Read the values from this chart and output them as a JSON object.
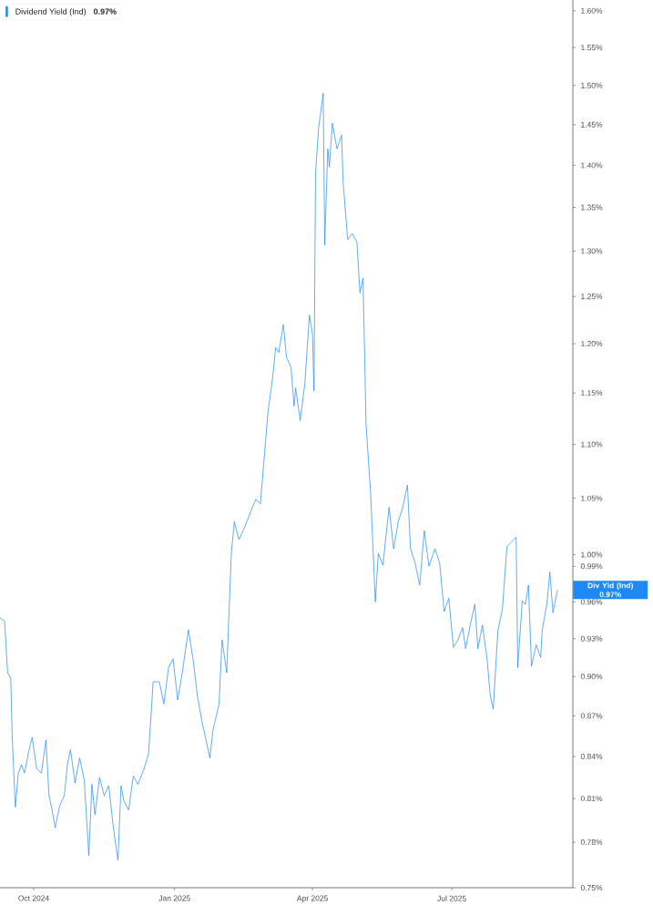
{
  "chart_data": {
    "type": "line",
    "x": [
      "2024-09-09",
      "2024-09-12",
      "2024-09-14",
      "2024-09-16",
      "2024-09-17",
      "2024-09-19",
      "2024-09-21",
      "2024-09-23",
      "2024-09-25",
      "2024-09-28",
      "2024-09-30",
      "2024-10-03",
      "2024-10-06",
      "2024-10-09",
      "2024-10-11",
      "2024-10-13",
      "2024-10-15",
      "2024-10-18",
      "2024-10-21",
      "2024-10-23",
      "2024-10-25",
      "2024-10-28",
      "2024-10-31",
      "2024-11-03",
      "2024-11-06",
      "2024-11-08",
      "2024-11-10",
      "2024-11-13",
      "2024-11-16",
      "2024-11-19",
      "2024-11-22",
      "2024-11-25",
      "2024-11-27",
      "2024-11-29",
      "2024-12-02",
      "2024-12-05",
      "2024-12-08",
      "2024-12-12",
      "2024-12-15",
      "2024-12-18",
      "2024-12-22",
      "2024-12-25",
      "2024-12-28",
      "2024-12-31",
      "2025-01-03",
      "2025-01-06",
      "2025-01-10",
      "2025-01-13",
      "2025-01-16",
      "2025-01-19",
      "2025-01-24",
      "2025-01-26",
      "2025-01-30",
      "2025-02-01",
      "2025-02-04",
      "2025-02-07",
      "2025-02-09",
      "2025-02-12",
      "2025-02-16",
      "2025-02-20",
      "2025-02-23",
      "2025-02-26",
      "2025-02-28",
      "2025-03-03",
      "2025-03-06",
      "2025-03-08",
      "2025-03-10",
      "2025-03-13",
      "2025-03-15",
      "2025-03-18",
      "2025-03-20",
      "2025-03-21",
      "2025-03-24",
      "2025-03-27",
      "2025-03-30",
      "2025-04-01",
      "2025-04-02",
      "2025-04-03",
      "2025-04-05",
      "2025-04-08",
      "2025-04-09",
      "2025-04-11",
      "2025-04-12",
      "2025-04-14",
      "2025-04-17",
      "2025-04-20",
      "2025-04-21",
      "2025-04-24",
      "2025-04-27",
      "2025-04-30",
      "2025-05-02",
      "2025-05-04",
      "2025-05-06",
      "2025-05-09",
      "2025-05-12",
      "2025-05-14",
      "2025-05-17",
      "2025-05-21",
      "2025-05-24",
      "2025-05-27",
      "2025-05-30",
      "2025-06-02",
      "2025-06-04",
      "2025-06-07",
      "2025-06-10",
      "2025-06-13",
      "2025-06-16",
      "2025-06-20",
      "2025-06-23",
      "2025-06-26",
      "2025-06-29",
      "2025-07-02",
      "2025-07-05",
      "2025-07-08",
      "2025-07-10",
      "2025-07-13",
      "2025-07-16",
      "2025-07-18",
      "2025-07-21",
      "2025-07-24",
      "2025-07-26",
      "2025-07-28",
      "2025-07-31",
      "2025-08-03",
      "2025-08-06",
      "2025-08-09",
      "2025-08-12",
      "2025-08-13",
      "2025-08-16",
      "2025-08-18",
      "2025-08-20",
      "2025-08-22",
      "2025-08-25",
      "2025-08-28",
      "2025-08-29",
      "2025-09-01",
      "2025-09-03",
      "2025-09-05",
      "2025-09-08"
    ],
    "series": [
      {
        "name": "Dividend Yield (Ind)",
        "color": "#1e88f5",
        "values": [
          0.947,
          0.944,
          0.903,
          0.899,
          0.854,
          0.804,
          0.828,
          0.834,
          0.828,
          0.845,
          0.854,
          0.831,
          0.828,
          0.852,
          0.812,
          0.802,
          0.79,
          0.805,
          0.812,
          0.834,
          0.845,
          0.821,
          0.839,
          0.823,
          0.771,
          0.82,
          0.799,
          0.825,
          0.812,
          0.819,
          0.79,
          0.768,
          0.819,
          0.808,
          0.802,
          0.826,
          0.82,
          0.831,
          0.842,
          0.896,
          0.896,
          0.879,
          0.907,
          0.914,
          0.882,
          0.903,
          0.937,
          0.914,
          0.884,
          0.865,
          0.839,
          0.859,
          0.879,
          0.929,
          0.903,
          1.001,
          1.029,
          1.013,
          1.025,
          1.039,
          1.049,
          1.045,
          1.079,
          1.132,
          1.165,
          1.196,
          1.191,
          1.22,
          1.186,
          1.176,
          1.137,
          1.155,
          1.123,
          1.159,
          1.23,
          1.21,
          1.152,
          1.39,
          1.446,
          1.49,
          1.307,
          1.42,
          1.398,
          1.452,
          1.42,
          1.437,
          1.38,
          1.313,
          1.32,
          1.31,
          1.254,
          1.27,
          1.119,
          1.054,
          0.96,
          1.001,
          0.991,
          1.042,
          1.005,
          1.029,
          1.042,
          1.062,
          1.005,
          0.993,
          0.974,
          1.021,
          0.99,
          1.005,
          0.993,
          0.952,
          0.963,
          0.923,
          0.929,
          0.939,
          0.922,
          0.941,
          0.958,
          0.922,
          0.941,
          0.914,
          0.886,
          0.875,
          0.936,
          0.954,
          1.007,
          1.011,
          1.015,
          0.907,
          0.961,
          0.958,
          0.974,
          0.908,
          0.925,
          0.915,
          0.937,
          0.958,
          0.985,
          0.951,
          0.97
        ]
      }
    ],
    "xlim": [
      "2024-09-09",
      "2025-09-18"
    ],
    "xticks": [
      {
        "value": "2024-10-01",
        "label": "Oct 2024"
      },
      {
        "value": "2025-01-01",
        "label": "Jan 2025"
      },
      {
        "value": "2025-04-01",
        "label": "Apr 2025"
      },
      {
        "value": "2025-07-01",
        "label": "Jul 2025"
      }
    ],
    "ylim": [
      0.75,
      1.615
    ],
    "yticks": [
      {
        "value": 0.75,
        "label": "0.75%"
      },
      {
        "value": 0.78,
        "label": "0.78%"
      },
      {
        "value": 0.81,
        "label": "0.81%"
      },
      {
        "value": 0.84,
        "label": "0.84%"
      },
      {
        "value": 0.87,
        "label": "0.87%"
      },
      {
        "value": 0.9,
        "label": "0.90%"
      },
      {
        "value": 0.93,
        "label": "0.93%"
      },
      {
        "value": 0.96,
        "label": "0.96%"
      },
      {
        "value": 0.99,
        "label": "0.99%"
      },
      {
        "value": 1.0,
        "label": "1.00%"
      },
      {
        "value": 1.05,
        "label": "1.05%"
      },
      {
        "value": 1.1,
        "label": "1.10%"
      },
      {
        "value": 1.15,
        "label": "1.15%"
      },
      {
        "value": 1.2,
        "label": "1.20%"
      },
      {
        "value": 1.25,
        "label": "1.25%"
      },
      {
        "value": 1.3,
        "label": "1.30%"
      },
      {
        "value": 1.35,
        "label": "1.35%"
      },
      {
        "value": 1.4,
        "label": "1.40%"
      },
      {
        "value": 1.45,
        "label": "1.45%"
      },
      {
        "value": 1.5,
        "label": "1.50%"
      },
      {
        "value": 1.55,
        "label": "1.55%"
      },
      {
        "value": 1.6,
        "label": "1.60%"
      }
    ],
    "log": "y",
    "legend": "top left",
    "grid": false,
    "annotations": [
      "0.97%",
      "Div Yld (Ind)",
      "0.97%"
    ]
  }
}
